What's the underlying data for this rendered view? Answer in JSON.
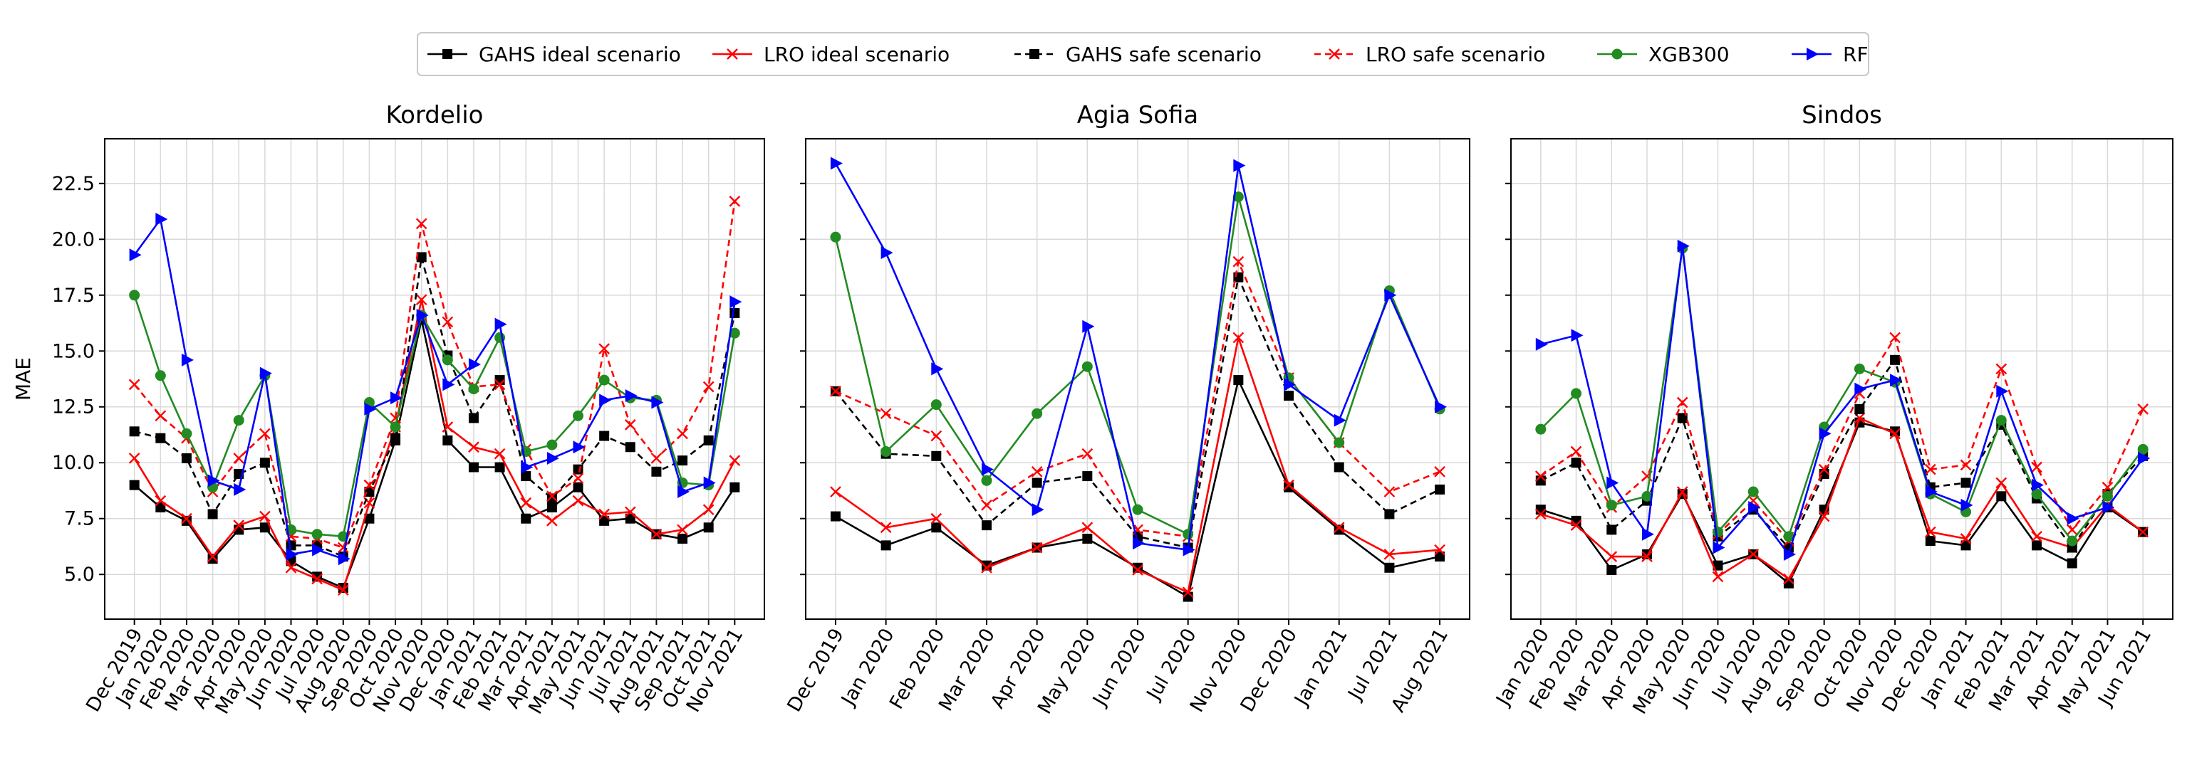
{
  "chart_data": [
    {
      "type": "line",
      "title": "Kordelio",
      "ylabel": "MAE",
      "ylim": [
        3.0,
        24.5
      ],
      "yticks": [
        "5.0",
        "7.5",
        "10.0",
        "12.5",
        "15.0",
        "17.5",
        "20.0",
        "22.5"
      ],
      "categories": [
        "Dec 2019",
        "Jan 2020",
        "Feb 2020",
        "Mar 2020",
        "Apr 2020",
        "May 2020",
        "Jun 2020",
        "Jul 2020",
        "Aug 2020",
        "Sep 2020",
        "Oct 2020",
        "Nov 2020",
        "Dec 2020",
        "Jan 2021",
        "Feb 2021",
        "Mar 2021",
        "Apr 2021",
        "May 2021",
        "Jun 2021",
        "Jul 2021",
        "Aug 2021",
        "Sep 2021",
        "Oct 2021",
        "Nov 2021"
      ],
      "series": [
        {
          "name": "GAHS ideal scenario",
          "values": [
            9.0,
            8.0,
            7.4,
            5.7,
            7.0,
            7.1,
            5.6,
            4.9,
            4.4,
            7.5,
            11.0,
            16.4,
            11.0,
            9.8,
            9.8,
            7.5,
            8.0,
            8.9,
            7.4,
            7.5,
            6.8,
            6.6,
            7.1,
            8.9
          ]
        },
        {
          "name": "LRO ideal scenario",
          "values": [
            10.2,
            8.3,
            7.5,
            5.8,
            7.2,
            7.6,
            5.3,
            4.8,
            4.3,
            8.2,
            11.6,
            17.3,
            11.6,
            10.7,
            10.4,
            8.2,
            7.4,
            8.3,
            7.7,
            7.8,
            6.8,
            7.0,
            7.9,
            10.1
          ]
        },
        {
          "name": "GAHS safe scenario",
          "values": [
            11.4,
            11.1,
            10.2,
            7.7,
            9.5,
            10.0,
            6.3,
            6.3,
            5.8,
            8.7,
            11.1,
            19.2,
            14.8,
            12.0,
            13.7,
            9.4,
            8.4,
            9.7,
            11.2,
            10.7,
            9.6,
            10.1,
            11.0,
            16.7
          ]
        },
        {
          "name": "LRO safe scenario",
          "values": [
            13.5,
            12.1,
            11.1,
            8.7,
            10.2,
            11.3,
            6.7,
            6.6,
            6.2,
            9.0,
            12.0,
            20.7,
            16.3,
            13.4,
            13.5,
            10.6,
            8.5,
            9.3,
            15.1,
            11.7,
            10.2,
            11.3,
            13.4,
            21.7
          ]
        },
        {
          "name": "XGB300",
          "values": [
            17.5,
            13.9,
            11.3,
            8.9,
            11.9,
            13.9,
            7.0,
            6.8,
            6.7,
            12.7,
            11.6,
            16.6,
            14.6,
            13.3,
            15.6,
            10.5,
            10.8,
            12.1,
            13.7,
            12.9,
            12.8,
            9.1,
            9.0,
            15.8
          ]
        },
        {
          "name": "RF",
          "values": [
            19.3,
            20.9,
            14.6,
            9.2,
            8.8,
            14.0,
            5.9,
            6.1,
            5.7,
            12.4,
            12.9,
            16.6,
            13.5,
            14.4,
            16.2,
            9.8,
            10.2,
            10.7,
            12.8,
            13.0,
            12.7,
            8.7,
            9.1,
            17.2
          ]
        }
      ]
    },
    {
      "type": "line",
      "title": "Agia Sofia",
      "ylabel": "",
      "ylim": [
        3.0,
        24.5
      ],
      "categories": [
        "Dec 2019",
        "Jan 2020",
        "Feb 2020",
        "Mar 2020",
        "Apr 2020",
        "May 2020",
        "Jun 2020",
        "Jul 2020",
        "Nov 2020",
        "Dec 2020",
        "Jan 2021",
        "Jul 2021",
        "Aug 2021"
      ],
      "series": [
        {
          "name": "GAHS ideal scenario",
          "values": [
            7.6,
            6.3,
            7.1,
            5.4,
            6.2,
            6.6,
            5.3,
            4.0,
            13.7,
            8.9,
            7.0,
            5.3,
            5.8
          ]
        },
        {
          "name": "LRO ideal scenario",
          "values": [
            8.7,
            7.1,
            7.5,
            5.3,
            6.2,
            7.1,
            5.2,
            4.2,
            15.6,
            9.0,
            7.1,
            5.9,
            6.1
          ]
        },
        {
          "name": "GAHS safe scenario",
          "values": [
            13.2,
            10.4,
            10.3,
            7.2,
            9.1,
            9.4,
            6.7,
            6.2,
            18.3,
            13.0,
            9.8,
            7.7,
            8.8
          ]
        },
        {
          "name": "LRO safe scenario",
          "values": [
            13.2,
            12.2,
            11.2,
            8.1,
            9.6,
            10.4,
            7.0,
            6.7,
            19.0,
            13.8,
            10.9,
            8.7,
            9.6
          ]
        },
        {
          "name": "XGB300",
          "values": [
            20.1,
            10.5,
            12.6,
            9.2,
            12.2,
            14.3,
            7.9,
            6.8,
            21.9,
            13.8,
            10.9,
            17.7,
            12.4
          ]
        },
        {
          "name": "RF",
          "values": [
            23.4,
            19.4,
            14.2,
            9.7,
            7.9,
            16.1,
            6.4,
            6.1,
            23.3,
            13.5,
            11.9,
            17.5,
            12.5
          ]
        }
      ]
    },
    {
      "type": "line",
      "title": "Sindos",
      "ylabel": "",
      "ylim": [
        3.0,
        24.5
      ],
      "categories": [
        "Jan 2020",
        "Feb 2020",
        "Mar 2020",
        "Apr 2020",
        "May 2020",
        "Jun 2020",
        "Jul 2020",
        "Aug 2020",
        "Sep 2020",
        "Oct 2020",
        "Nov 2020",
        "Dec 2020",
        "Jan 2021",
        "Feb 2021",
        "Mar 2021",
        "Apr 2021",
        "May 2021",
        "Jun 2021"
      ],
      "series": [
        {
          "name": "GAHS ideal scenario",
          "values": [
            7.9,
            7.4,
            5.2,
            5.9,
            8.6,
            5.4,
            5.9,
            4.6,
            7.9,
            11.8,
            11.4,
            6.5,
            6.3,
            8.5,
            6.3,
            5.5,
            8.0,
            6.9
          ]
        },
        {
          "name": "LRO ideal scenario",
          "values": [
            7.7,
            7.2,
            5.8,
            5.8,
            8.7,
            4.9,
            5.9,
            4.8,
            7.6,
            12.0,
            11.3,
            6.9,
            6.6,
            9.1,
            6.7,
            6.2,
            8.1,
            6.9
          ]
        },
        {
          "name": "GAHS safe scenario",
          "values": [
            9.2,
            10.0,
            7.0,
            8.3,
            12.0,
            6.7,
            7.9,
            6.2,
            9.5,
            12.4,
            14.6,
            8.9,
            9.1,
            11.7,
            8.4,
            6.2,
            8.6,
            10.3
          ]
        },
        {
          "name": "LRO safe scenario",
          "values": [
            9.4,
            10.5,
            8.0,
            9.4,
            12.7,
            6.8,
            8.3,
            6.5,
            9.7,
            13.1,
            15.6,
            9.7,
            9.9,
            14.2,
            9.8,
            7.0,
            8.9,
            12.4
          ]
        },
        {
          "name": "XGB300",
          "values": [
            11.5,
            13.1,
            8.1,
            8.5,
            19.6,
            6.9,
            8.7,
            6.7,
            11.6,
            14.2,
            13.6,
            8.6,
            7.8,
            11.9,
            8.6,
            6.5,
            8.5,
            10.6
          ]
        },
        {
          "name": "RF",
          "values": [
            15.3,
            15.7,
            9.1,
            6.8,
            19.7,
            6.2,
            8.0,
            5.9,
            11.3,
            13.3,
            13.7,
            8.7,
            8.1,
            13.2,
            9.0,
            7.5,
            8.0,
            10.2
          ]
        }
      ]
    }
  ],
  "legend": [
    {
      "name": "GAHS ideal scenario",
      "color": "#000000",
      "dash": "solid",
      "marker": "square"
    },
    {
      "name": "LRO ideal scenario",
      "color": "#ff0000",
      "dash": "solid",
      "marker": "x"
    },
    {
      "name": "GAHS safe scenario",
      "color": "#000000",
      "dash": "dashed",
      "marker": "square"
    },
    {
      "name": "LRO safe scenario",
      "color": "#ff0000",
      "dash": "dashed",
      "marker": "x"
    },
    {
      "name": "XGB300",
      "color": "#228b22",
      "dash": "solid",
      "marker": "circle"
    },
    {
      "name": "RF",
      "color": "#0000ff",
      "dash": "solid",
      "marker": "triangle-right"
    }
  ]
}
